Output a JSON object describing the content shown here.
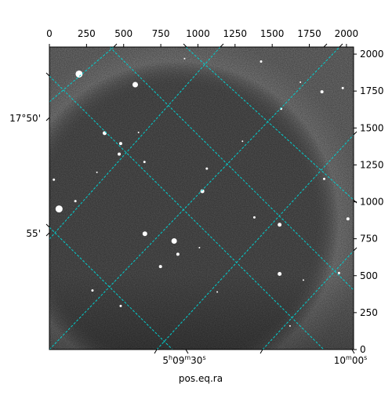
{
  "chart_data": {
    "type": "scatter",
    "title": "",
    "xlabel": "pos.eq.ra",
    "ylabel": "",
    "pixel_axes": {
      "x_range": [
        0,
        2048
      ],
      "y_range": [
        0,
        2048
      ],
      "x_ticks": [
        0,
        250,
        500,
        750,
        1000,
        1250,
        1500,
        1750,
        2000
      ],
      "y_ticks": [
        0,
        250,
        500,
        750,
        1000,
        1250,
        1500,
        1750,
        2000
      ]
    },
    "world_axes": {
      "ra_tick_labels": [
        {
          "h": "5",
          "hs": "h",
          "m": "09",
          "ms": "m",
          "s": "30",
          "ss": "s"
        },
        {
          "h": "",
          "hs": "",
          "m": "10",
          "ms": "m",
          "s": "00",
          "ss": "s"
        }
      ],
      "dec_tick_labels": [
        "17°50'",
        "55'"
      ]
    },
    "grid": true,
    "grid_color": "#00d0d0",
    "image": {
      "colormap": "gray",
      "background": "#575757"
    },
    "stars": [
      {
        "x": 200,
        "y": 1865,
        "size": 9
      },
      {
        "x": 578,
        "y": 1793,
        "size": 7
      },
      {
        "x": 65,
        "y": 952,
        "size": 9
      },
      {
        "x": 840,
        "y": 735,
        "size": 7
      },
      {
        "x": 643,
        "y": 784,
        "size": 6
      },
      {
        "x": 1550,
        "y": 845,
        "size": 5
      },
      {
        "x": 1550,
        "y": 512,
        "size": 5
      },
      {
        "x": 372,
        "y": 1465,
        "size": 5
      },
      {
        "x": 1030,
        "y": 1072,
        "size": 5
      },
      {
        "x": 1835,
        "y": 1745,
        "size": 4
      },
      {
        "x": 2010,
        "y": 885,
        "size": 4
      },
      {
        "x": 480,
        "y": 1395,
        "size": 4
      },
      {
        "x": 470,
        "y": 1323,
        "size": 4
      },
      {
        "x": 865,
        "y": 645,
        "size": 4
      },
      {
        "x": 748,
        "y": 562,
        "size": 4
      },
      {
        "x": 1560,
        "y": 1630,
        "size": 3
      },
      {
        "x": 1975,
        "y": 1770,
        "size": 3
      },
      {
        "x": 175,
        "y": 1005,
        "size": 3
      },
      {
        "x": 1380,
        "y": 895,
        "size": 3
      },
      {
        "x": 480,
        "y": 295,
        "size": 3
      },
      {
        "x": 640,
        "y": 1270,
        "size": 3
      },
      {
        "x": 1425,
        "y": 1950,
        "size": 3
      },
      {
        "x": 1060,
        "y": 1225,
        "size": 3
      },
      {
        "x": 1950,
        "y": 518,
        "size": 3
      },
      {
        "x": 1850,
        "y": 1155,
        "size": 3
      },
      {
        "x": 290,
        "y": 400,
        "size": 3
      },
      {
        "x": 30,
        "y": 1150,
        "size": 3
      },
      {
        "x": 320,
        "y": 1200,
        "size": 2
      },
      {
        "x": 1300,
        "y": 1410,
        "size": 2
      },
      {
        "x": 1710,
        "y": 470,
        "size": 2
      },
      {
        "x": 910,
        "y": 1970,
        "size": 2
      },
      {
        "x": 1690,
        "y": 1810,
        "size": 2
      },
      {
        "x": 1620,
        "y": 160,
        "size": 2
      },
      {
        "x": 1010,
        "y": 690,
        "size": 2
      },
      {
        "x": 600,
        "y": 1470,
        "size": 2
      },
      {
        "x": 1130,
        "y": 390,
        "size": 2
      }
    ]
  }
}
